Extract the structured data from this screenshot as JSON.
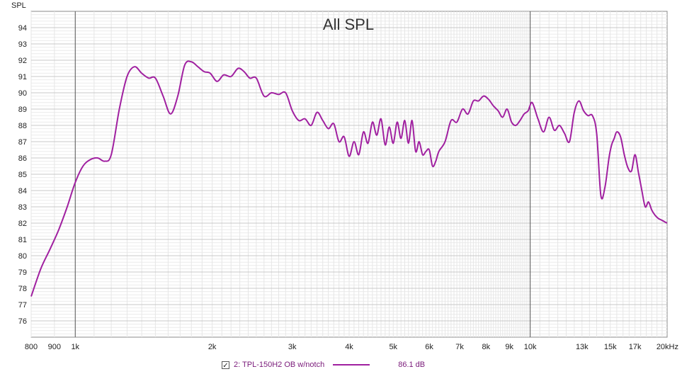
{
  "chart_data": {
    "type": "line",
    "title": "All SPL",
    "ylabel": "SPL",
    "xlabel": "",
    "x_scale": "log",
    "xlim": [
      800,
      20000
    ],
    "ylim": [
      75,
      95
    ],
    "y_ticks": [
      "76",
      "77",
      "78",
      "79",
      "80",
      "81",
      "82",
      "83",
      "84",
      "85",
      "86",
      "87",
      "88",
      "89",
      "90",
      "91",
      "92",
      "93",
      "94"
    ],
    "x_ticks": [
      {
        "value": 800,
        "label": "800"
      },
      {
        "value": 900,
        "label": "900"
      },
      {
        "value": 1000,
        "label": "1k"
      },
      {
        "value": 2000,
        "label": "2k"
      },
      {
        "value": 3000,
        "label": "3k"
      },
      {
        "value": 4000,
        "label": "4k"
      },
      {
        "value": 5000,
        "label": "5k"
      },
      {
        "value": 6000,
        "label": "6k"
      },
      {
        "value": 7000,
        "label": "7k"
      },
      {
        "value": 8000,
        "label": "8k"
      },
      {
        "value": 9000,
        "label": "9k"
      },
      {
        "value": 10000,
        "label": "10k"
      },
      {
        "value": 13000,
        "label": "13k"
      },
      {
        "value": 15000,
        "label": "15k"
      },
      {
        "value": 17000,
        "label": "17k"
      },
      {
        "value": 20000,
        "label": "20kHz"
      }
    ],
    "series": [
      {
        "name": "2: TPL-150H2 OB w/notch",
        "color": "#a020a0",
        "x": [
          800,
          840,
          880,
          920,
          960,
          1000,
          1040,
          1080,
          1120,
          1160,
          1200,
          1250,
          1300,
          1350,
          1400,
          1450,
          1500,
          1560,
          1620,
          1680,
          1740,
          1800,
          1860,
          1920,
          1980,
          2050,
          2120,
          2200,
          2280,
          2350,
          2420,
          2500,
          2600,
          2700,
          2800,
          2900,
          3000,
          3100,
          3200,
          3300,
          3400,
          3500,
          3600,
          3700,
          3800,
          3900,
          4000,
          4100,
          4200,
          4300,
          4400,
          4500,
          4600,
          4700,
          4800,
          4900,
          5000,
          5100,
          5200,
          5300,
          5400,
          5500,
          5600,
          5700,
          5800,
          5900,
          6000,
          6100,
          6200,
          6300,
          6500,
          6700,
          6900,
          7100,
          7300,
          7500,
          7700,
          7900,
          8100,
          8300,
          8500,
          8700,
          8900,
          9100,
          9300,
          9500,
          9700,
          9900,
          10100,
          10400,
          10700,
          11000,
          11300,
          11600,
          11900,
          12200,
          12500,
          12800,
          13100,
          13400,
          13700,
          14000,
          14300,
          14600,
          14900,
          15100,
          15300,
          15500,
          15800,
          16100,
          16400,
          16700,
          17000,
          17300,
          17600,
          17900,
          18200,
          18500,
          18800,
          19100,
          19400,
          19700,
          20000
        ],
        "y": [
          77.5,
          79.2,
          80.4,
          81.6,
          83.0,
          84.5,
          85.5,
          85.9,
          86.0,
          85.8,
          86.2,
          89.0,
          91.0,
          91.6,
          91.2,
          90.9,
          90.9,
          89.8,
          88.7,
          89.8,
          91.7,
          91.9,
          91.6,
          91.3,
          91.2,
          90.7,
          91.1,
          91.0,
          91.5,
          91.3,
          90.9,
          90.9,
          89.8,
          90.0,
          89.9,
          90.0,
          88.9,
          88.3,
          88.4,
          88.0,
          88.8,
          88.3,
          87.8,
          88.1,
          87.0,
          87.3,
          86.1,
          87.0,
          86.2,
          87.6,
          86.9,
          88.2,
          87.4,
          88.4,
          86.8,
          87.9,
          86.9,
          88.2,
          87.2,
          88.3,
          86.9,
          88.3,
          86.4,
          87.0,
          86.2,
          86.4,
          86.5,
          85.5,
          85.8,
          86.4,
          87.0,
          88.3,
          88.2,
          89.0,
          88.7,
          89.5,
          89.5,
          89.8,
          89.6,
          89.2,
          88.9,
          88.5,
          89.0,
          88.2,
          88.0,
          88.3,
          88.7,
          88.9,
          89.4,
          88.4,
          87.6,
          88.5,
          87.7,
          88.0,
          87.5,
          87.0,
          88.8,
          89.5,
          88.9,
          88.6,
          88.6,
          87.5,
          83.7,
          84.2,
          86.0,
          86.8,
          87.2,
          87.6,
          87.3,
          86.2,
          85.4,
          85.2,
          86.2,
          85.1,
          84.0,
          83.0,
          83.3,
          82.8,
          82.5,
          82.3,
          82.2,
          82.1,
          82.0
        ]
      }
    ]
  },
  "legend": {
    "checked_mark": "✓",
    "series_label": "2: TPL-150H2 OB w/notch",
    "value_label": "86.1 dB"
  }
}
